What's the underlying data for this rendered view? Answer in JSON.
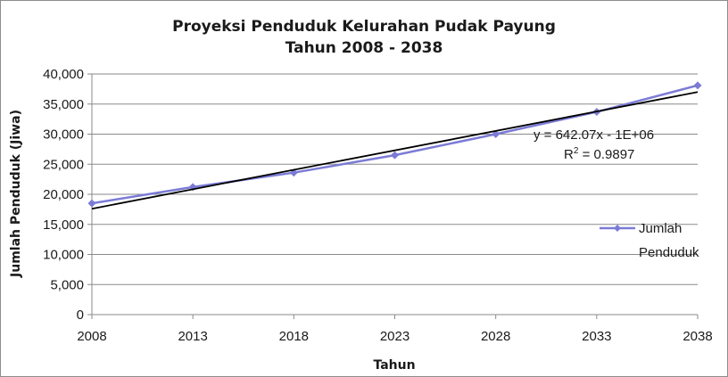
{
  "chart_data": {
    "type": "line",
    "title": [
      "Proyeksi Penduduk Kelurahan Pudak Payung",
      "Tahun 2008 - 2038"
    ],
    "xlabel": "Tahun",
    "ylabel": "Jumlah Penduduk (Jiwa)",
    "x": [
      2008,
      2013,
      2018,
      2023,
      2028,
      2033,
      2038
    ],
    "xticks": [
      "2008",
      "2013",
      "2018",
      "2023",
      "2028",
      "2033",
      "2038"
    ],
    "yticks": [
      "0",
      "5,000",
      "10,000",
      "15,000",
      "20,000",
      "25,000",
      "30,000",
      "35,000",
      "40,000"
    ],
    "ylim": [
      0,
      40000
    ],
    "grid": "horizontal",
    "series": [
      {
        "name": "Jumlah Penduduk",
        "color": "#7b7bd6",
        "marker": "diamond",
        "values": [
          18500,
          21200,
          23600,
          26500,
          30000,
          33700,
          38100
        ]
      }
    ],
    "trendline": {
      "type": "linear",
      "color": "#000000",
      "start": [
        2008,
        17600
      ],
      "end": [
        2038,
        37000
      ],
      "equation": "y = 642.07x - 1E+06",
      "r2_prefix": "R",
      "r2_sup": "2",
      "r2_value": " = 0.9897"
    },
    "legend": {
      "position": "right",
      "lines": [
        "Jumlah",
        "Penduduk"
      ]
    }
  }
}
